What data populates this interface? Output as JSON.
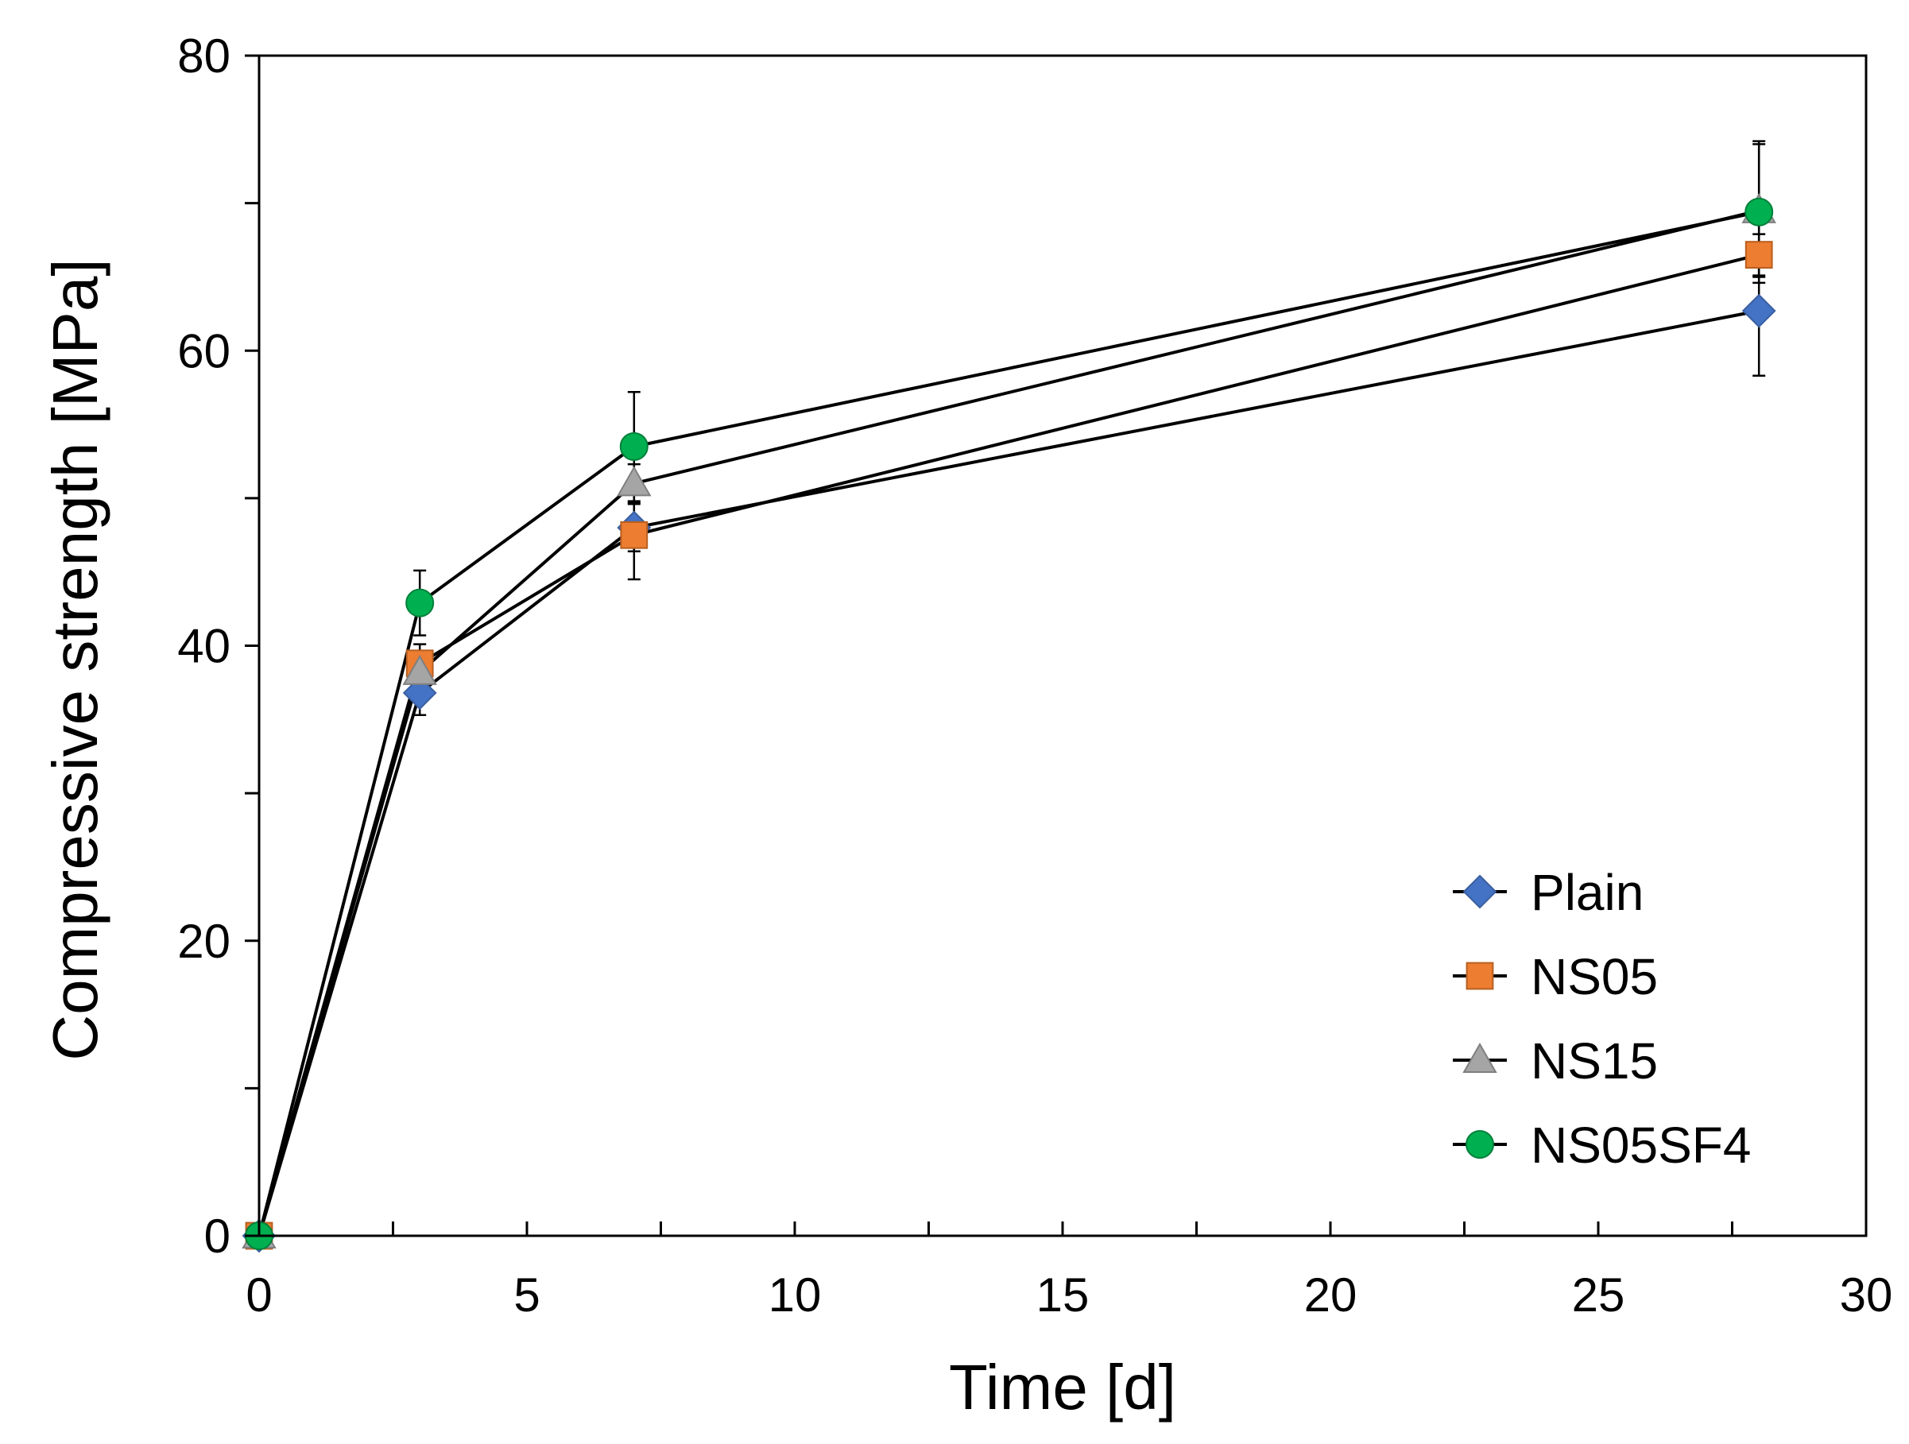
{
  "chart_data": {
    "type": "line",
    "title": "",
    "xlabel": "Time [d]",
    "ylabel": "Compressive strength [MPa]",
    "xlim": [
      0,
      30
    ],
    "ylim": [
      0,
      80
    ],
    "xticks": [
      0,
      5,
      10,
      15,
      20,
      25,
      30
    ],
    "xtick_labels": [
      "0",
      "5",
      "10",
      "15",
      "20",
      "25",
      "30"
    ],
    "xminor_step": 2.5,
    "yticks": [
      0,
      20,
      40,
      60,
      80
    ],
    "ytick_labels": [
      "0",
      "20",
      "40",
      "60",
      "80"
    ],
    "yminor_step": 10,
    "grid": false,
    "legend_position": "bottom-right",
    "x": [
      0,
      3,
      7,
      28
    ],
    "series": [
      {
        "name": "Plain",
        "marker": "diamond",
        "color": "#4472C4",
        "values": [
          0,
          36.8,
          48.0,
          62.7
        ],
        "errors": [
          0,
          1.5,
          1.6,
          4.4
        ]
      },
      {
        "name": "NS05",
        "marker": "square",
        "color": "#ED7D31",
        "values": [
          0,
          38.8,
          47.5,
          66.5
        ],
        "errors": [
          0,
          1.3,
          3.0,
          1.4
        ]
      },
      {
        "name": "NS15",
        "marker": "triangle",
        "color": "#A5A5A5",
        "values": [
          0,
          38.2,
          51.0,
          69.5
        ],
        "errors": [
          0,
          1.3,
          1.3,
          4.5
        ]
      },
      {
        "name": "NS05SF4",
        "marker": "circle",
        "color": "#00B050",
        "values": [
          0,
          42.9,
          53.5,
          69.4
        ],
        "errors": [
          0,
          2.2,
          3.7,
          4.8
        ]
      }
    ]
  }
}
